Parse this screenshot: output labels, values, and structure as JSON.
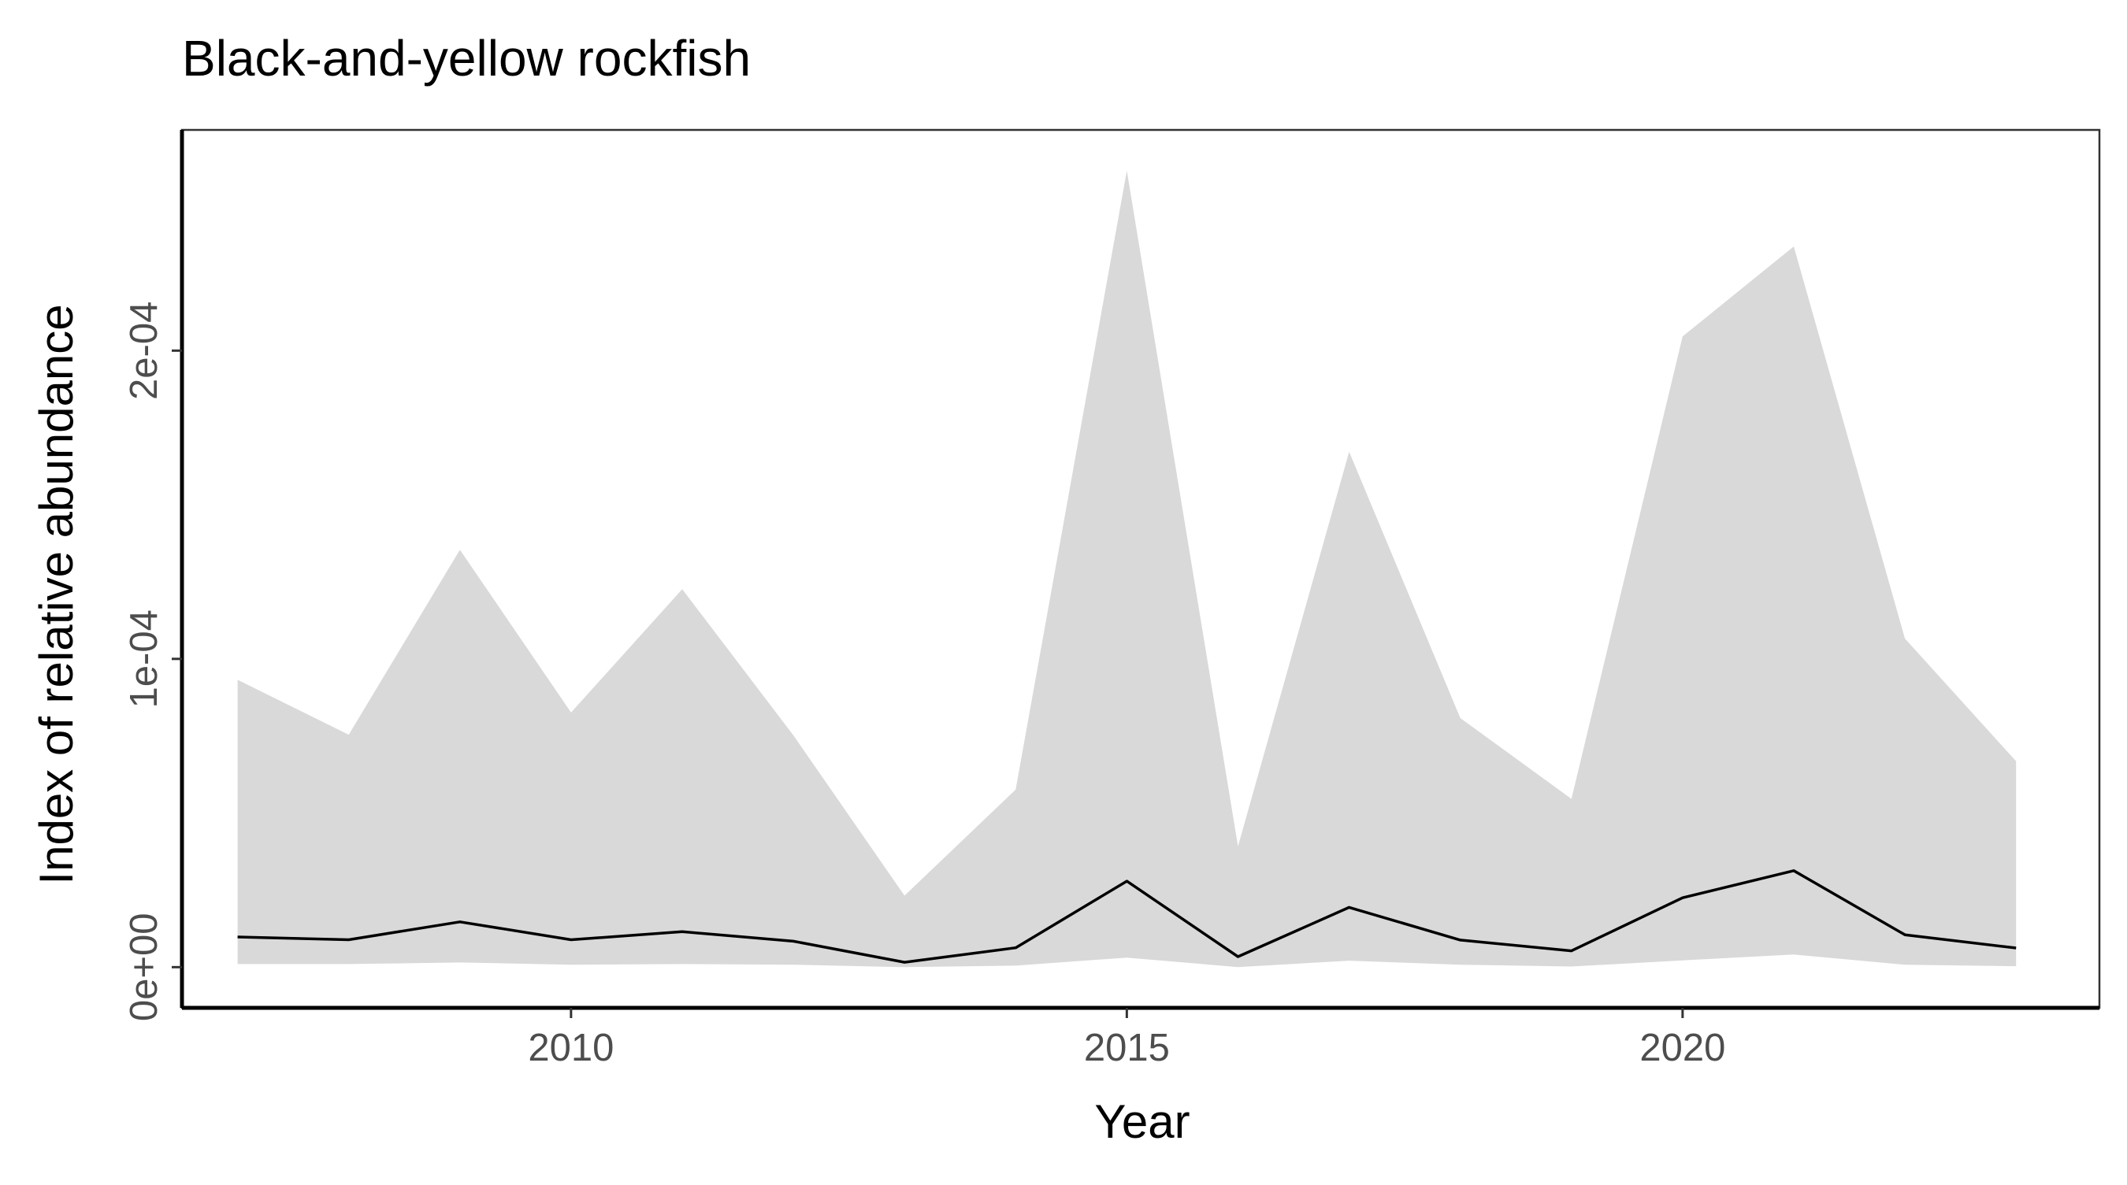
{
  "chart_data": {
    "type": "area",
    "title": "Black-and-yellow rockfish",
    "xlabel": "Year",
    "ylabel": "Index of relative abundance",
    "x": [
      2007,
      2008,
      2009,
      2010,
      2011,
      2012,
      2013,
      2014,
      2015,
      2016,
      2017,
      2018,
      2019,
      2020,
      2021,
      2022,
      2023
    ],
    "series": [
      {
        "values": [
          9.8e-06,
          8.9e-06,
          1.47e-05,
          8.9e-06,
          1.15e-05,
          8.4e-06,
          1.6e-06,
          6.3e-06,
          2.79e-05,
          3.4e-06,
          1.94e-05,
          8.8e-06,
          5.3e-06,
          2.25e-05,
          3.13e-05,
          1.05e-05,
          6.2e-06
        ],
        "lower": [
          1e-06,
          1e-06,
          1.5e-06,
          8e-07,
          1e-06,
          8e-07,
          0.0,
          5e-07,
          3.1e-06,
          0.0,
          2.1e-06,
          8e-07,
          2e-07,
          2.2e-06,
          4.1e-06,
          8e-07,
          3e-07
        ],
        "upper": [
          9.32e-05,
          7.54e-05,
          0.0001354,
          8.26e-05,
          0.0001226,
          7.52e-05,
          2.32e-05,
          5.76e-05,
          0.0002584,
          3.92e-05,
          0.0001672,
          8.08e-05,
          5.46e-05,
          0.0002046,
          0.0002338,
          0.0001066,
          6.68e-05
        ]
      }
    ],
    "xlim": [
      2006.5,
      2023.75
    ],
    "ylim": [
      -1.32e-05,
      0.0002716
    ],
    "xticks": [
      2010,
      2015,
      2020
    ],
    "xtick_labels": [
      "2010",
      "2015",
      "2020"
    ],
    "yticks": [
      0,
      0.0001,
      0.0002
    ],
    "ytick_labels": [
      "0e+00",
      "1e-04",
      "2e-04"
    ],
    "grid": false,
    "legend": "none",
    "colors": {
      "ribbon": "#d9d9d9",
      "line": "#000000",
      "axis": "#000000",
      "frame": "#333333",
      "tick_label": "#4d4d4d"
    }
  }
}
